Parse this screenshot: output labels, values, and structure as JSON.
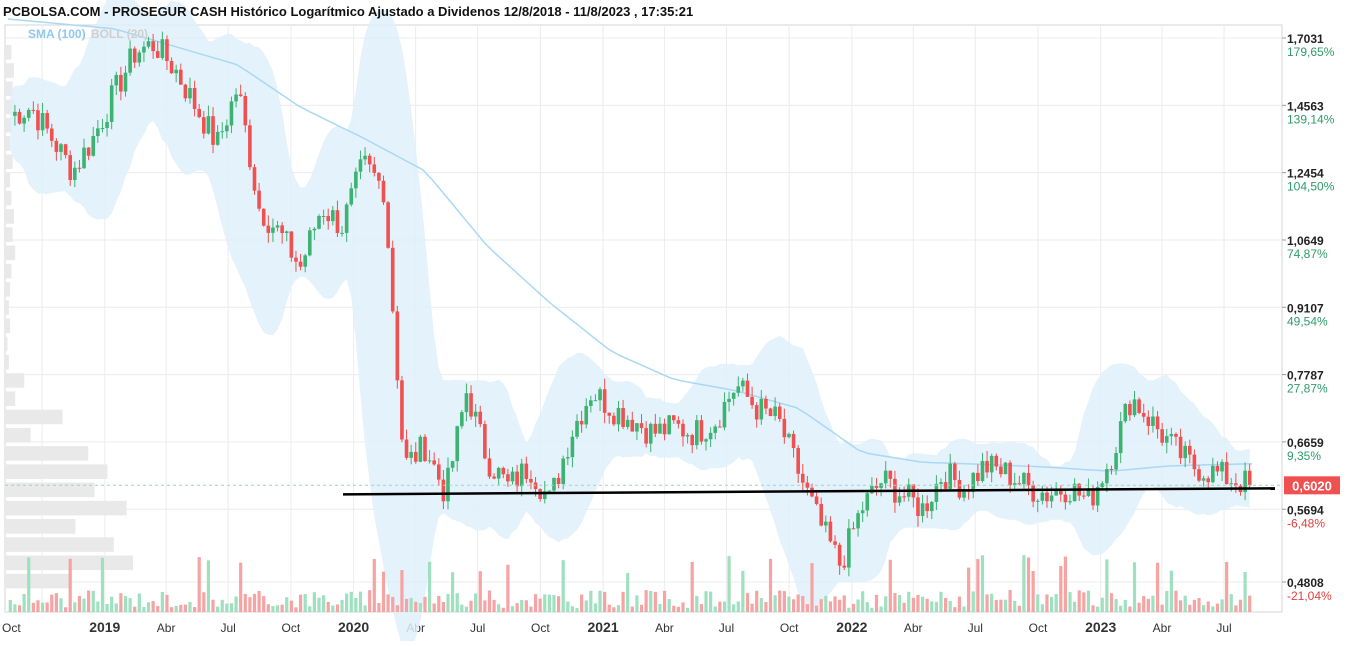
{
  "title": "PCBOLSA.COM - PROSEGUR CASH Histórico Logarítmico Ajustado a Dividenos 12/8/2018 - 11/8/2023 , 17:35:21",
  "legend": {
    "sma": "SMA (100)",
    "boll": "BOLL (20)"
  },
  "colors": {
    "up": "#3cb371",
    "down": "#f05050",
    "band": "#dff0fb",
    "sma": "#a9d8f5",
    "volume_up": "#9ee0bf",
    "volume_down": "#f6a3a3",
    "support": "#000000",
    "price_tag": "#f05050",
    "pct_pos": "#2e9b6b",
    "pct_neg": "#e53e3e"
  },
  "chart_data": {
    "type": "candlestick",
    "scale": "log",
    "ylim": [
      0.4808,
      1.7031
    ],
    "y_ticks": [
      {
        "value": "1,7031",
        "pct": "179,65%",
        "sign": "pos",
        "v": 1.7031
      },
      {
        "value": "1,4563",
        "pct": "139,14%",
        "sign": "pos",
        "v": 1.4563
      },
      {
        "value": "1,2454",
        "pct": "104,50%",
        "sign": "pos",
        "v": 1.2454
      },
      {
        "value": "1,0649",
        "pct": "74,87%",
        "sign": "pos",
        "v": 1.0649
      },
      {
        "value": "0,9107",
        "pct": "49,54%",
        "sign": "pos",
        "v": 0.9107
      },
      {
        "value": "0,7787",
        "pct": "27,87%",
        "sign": "pos",
        "v": 0.7787
      },
      {
        "value": "0,6659",
        "pct": "9,35%",
        "sign": "pos",
        "v": 0.6659
      },
      {
        "value": "0,5694",
        "pct": "-6,48%",
        "sign": "neg",
        "v": 0.5694
      },
      {
        "value": "0,4808",
        "pct": "-21,04%",
        "sign": "neg",
        "v": 0.4808
      }
    ],
    "x_ticks": [
      {
        "label": "Oct",
        "major": false
      },
      {
        "label": "2019",
        "major": true
      },
      {
        "label": "Abr",
        "major": false
      },
      {
        "label": "Jul",
        "major": false
      },
      {
        "label": "Oct",
        "major": false
      },
      {
        "label": "2020",
        "major": true
      },
      {
        "label": "Abr",
        "major": false
      },
      {
        "label": "Jul",
        "major": false
      },
      {
        "label": "Oct",
        "major": false
      },
      {
        "label": "2021",
        "major": true
      },
      {
        "label": "Abr",
        "major": false
      },
      {
        "label": "Jul",
        "major": false
      },
      {
        "label": "Oct",
        "major": false
      },
      {
        "label": "2022",
        "major": true
      },
      {
        "label": "Abr",
        "major": false
      },
      {
        "label": "Jul",
        "major": false
      },
      {
        "label": "Oct",
        "major": false
      },
      {
        "label": "2023",
        "major": true
      },
      {
        "label": "Abr",
        "major": false
      },
      {
        "label": "Jul",
        "major": false
      }
    ],
    "last_price": "0,6020",
    "last_price_value": 0.602,
    "support_level": 0.595,
    "price_path": [
      [
        "2018-08",
        1.42
      ],
      [
        "2018-09",
        1.45
      ],
      [
        "2018-10",
        1.35
      ],
      [
        "2018-11",
        1.25
      ],
      [
        "2018-12",
        1.35
      ],
      [
        "2019-01",
        1.5
      ],
      [
        "2019-02",
        1.65
      ],
      [
        "2019-03",
        1.68
      ],
      [
        "2019-04",
        1.58
      ],
      [
        "2019-05",
        1.45
      ],
      [
        "2019-06",
        1.33
      ],
      [
        "2019-07",
        1.52
      ],
      [
        "2019-08",
        1.15
      ],
      [
        "2019-09",
        1.08
      ],
      [
        "2019-10",
        1.0
      ],
      [
        "2019-11",
        1.15
      ],
      [
        "2019-12",
        1.1
      ],
      [
        "2020-01",
        1.27
      ],
      [
        "2020-02",
        1.2
      ],
      [
        "2020-03",
        0.63
      ],
      [
        "2020-04",
        0.66
      ],
      [
        "2020-05",
        0.59
      ],
      [
        "2020-06",
        0.75
      ],
      [
        "2020-07",
        0.64
      ],
      [
        "2020-08",
        0.6
      ],
      [
        "2020-09",
        0.63
      ],
      [
        "2020-10",
        0.58
      ],
      [
        "2020-11",
        0.68
      ],
      [
        "2020-12",
        0.75
      ],
      [
        "2021-01",
        0.72
      ],
      [
        "2021-02",
        0.7
      ],
      [
        "2021-03",
        0.68
      ],
      [
        "2021-04",
        0.69
      ],
      [
        "2021-05",
        0.68
      ],
      [
        "2021-06",
        0.7
      ],
      [
        "2021-07",
        0.76
      ],
      [
        "2021-08",
        0.72
      ],
      [
        "2021-09",
        0.7
      ],
      [
        "2021-10",
        0.62
      ],
      [
        "2021-11",
        0.55
      ],
      [
        "2021-12",
        0.5
      ],
      [
        "2022-01",
        0.57
      ],
      [
        "2022-02",
        0.61
      ],
      [
        "2022-03",
        0.59
      ],
      [
        "2022-04",
        0.57
      ],
      [
        "2022-05",
        0.62
      ],
      [
        "2022-06",
        0.6
      ],
      [
        "2022-07",
        0.63
      ],
      [
        "2022-08",
        0.62
      ],
      [
        "2022-09",
        0.6
      ],
      [
        "2022-10",
        0.59
      ],
      [
        "2022-11",
        0.6
      ],
      [
        "2022-12",
        0.58
      ],
      [
        "2023-01",
        0.64
      ],
      [
        "2023-02",
        0.74
      ],
      [
        "2023-03",
        0.7
      ],
      [
        "2023-04",
        0.66
      ],
      [
        "2023-05",
        0.63
      ],
      [
        "2023-06",
        0.62
      ],
      [
        "2023-07",
        0.61
      ],
      [
        "2023-08",
        0.602
      ]
    ],
    "sma100_path": [
      [
        "2018-08",
        1.78
      ],
      [
        "2019-01",
        1.74
      ],
      [
        "2019-07",
        1.6
      ],
      [
        "2019-10",
        1.45
      ],
      [
        "2020-01",
        1.35
      ],
      [
        "2020-04",
        1.25
      ],
      [
        "2020-07",
        1.05
      ],
      [
        "2020-10",
        0.92
      ],
      [
        "2021-01",
        0.82
      ],
      [
        "2021-04",
        0.77
      ],
      [
        "2021-07",
        0.75
      ],
      [
        "2021-10",
        0.72
      ],
      [
        "2022-01",
        0.65
      ],
      [
        "2022-04",
        0.635
      ],
      [
        "2022-07",
        0.632
      ],
      [
        "2022-10",
        0.628
      ],
      [
        "2023-01",
        0.622
      ],
      [
        "2023-04",
        0.63
      ],
      [
        "2023-08",
        0.633
      ]
    ],
    "volume_profile": [
      0.05,
      0.07,
      0.06,
      0.08,
      0.05,
      0.04,
      0.06,
      0.04,
      0.05,
      0.07,
      0.06,
      0.08,
      0.05,
      0.04,
      0.03,
      0.04,
      0.02,
      0.03,
      0.15,
      0.08,
      0.45,
      0.2,
      0.65,
      0.8,
      0.7,
      0.95,
      0.55,
      0.85,
      1.0,
      0.5
    ]
  }
}
